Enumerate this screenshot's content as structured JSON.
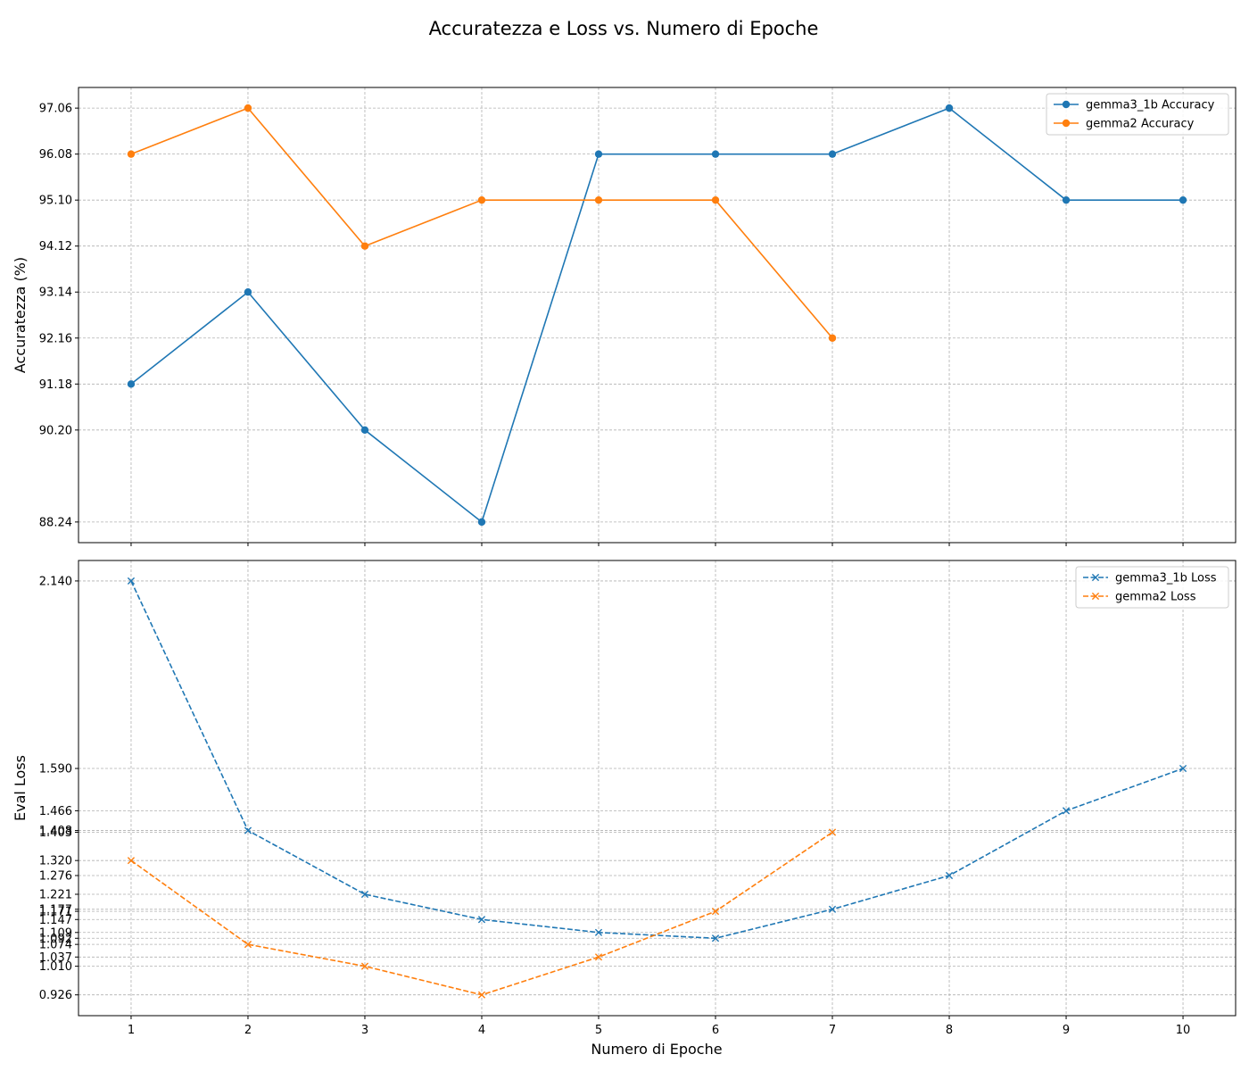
{
  "figure": {
    "title": "Accuratezza e Loss vs. Numero di Epoche",
    "xlabel": "Numero di Epoche"
  },
  "chart_data": [
    {
      "type": "line",
      "ylabel": "Accuratezza (%)",
      "x": [
        1,
        2,
        3,
        4,
        5,
        6,
        7,
        8,
        9,
        10
      ],
      "xlim": [
        0.55,
        10.45
      ],
      "ylim": [
        87.8,
        97.5
      ],
      "yticks": [
        "88.24",
        "90.20",
        "91.18",
        "92.16",
        "93.14",
        "94.12",
        "95.10",
        "96.08",
        "97.06"
      ],
      "grid": true,
      "legend_position": "top-right",
      "series": [
        {
          "name": "gemma3_1b Accuracy",
          "color": "#1f77b4",
          "marker": "circle",
          "linestyle": "solid",
          "x": [
            1,
            2,
            3,
            4,
            5,
            6,
            7,
            8,
            9,
            10
          ],
          "values": [
            91.18,
            93.14,
            90.2,
            88.24,
            96.08,
            96.08,
            96.08,
            97.06,
            95.1,
            95.1
          ]
        },
        {
          "name": "gemma2 Accuracy",
          "color": "#ff7f0e",
          "marker": "circle",
          "linestyle": "solid",
          "x": [
            1,
            2,
            3,
            4,
            5,
            6,
            7
          ],
          "values": [
            96.08,
            97.06,
            94.12,
            95.1,
            95.1,
            95.1,
            92.16
          ]
        }
      ]
    },
    {
      "type": "line",
      "ylabel": "Eval Loss",
      "x": [
        1,
        2,
        3,
        4,
        5,
        6,
        7,
        8,
        9,
        10
      ],
      "xlim": [
        0.55,
        10.45
      ],
      "ylim": [
        0.865,
        2.2
      ],
      "yticks": [
        "0.926",
        "1.010",
        "1.037",
        "1.074",
        "1.092",
        "1.109",
        "1.147",
        "1.171",
        "1.177",
        "1.221",
        "1.276",
        "1.320",
        "1.403",
        "1.408",
        "1.466",
        "1.590",
        "2.140"
      ],
      "grid": true,
      "legend_position": "top-right",
      "series": [
        {
          "name": "gemma3_1b Loss",
          "color": "#1f77b4",
          "marker": "x",
          "linestyle": "dashed",
          "x": [
            1,
            2,
            3,
            4,
            5,
            6,
            7,
            8,
            9,
            10
          ],
          "values": [
            2.14,
            1.408,
            1.221,
            1.147,
            1.109,
            1.092,
            1.177,
            1.276,
            1.466,
            1.59
          ]
        },
        {
          "name": "gemma2 Loss",
          "color": "#ff7f0e",
          "marker": "x",
          "linestyle": "dashed",
          "x": [
            1,
            2,
            3,
            4,
            5,
            6,
            7
          ],
          "values": [
            1.32,
            1.074,
            1.01,
            0.926,
            1.037,
            1.171,
            1.403
          ]
        }
      ]
    }
  ]
}
